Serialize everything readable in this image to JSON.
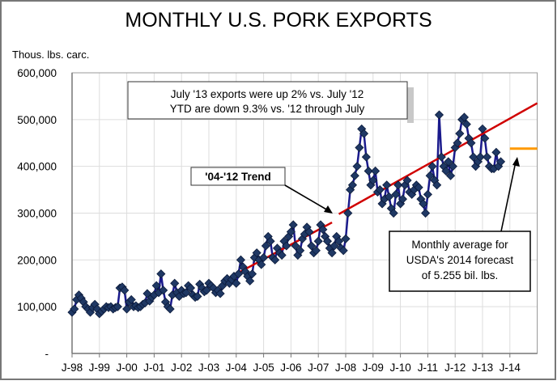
{
  "chart_data": {
    "type": "line",
    "title": "MONTHLY U.S. PORK EXPORTS",
    "ylabel": "Thous. lbs. carc.",
    "xlabel": "",
    "ylim": [
      0,
      600000
    ],
    "yticks": [
      "-",
      "100,000",
      "200,000",
      "300,000",
      "400,000",
      "500,000",
      "600,000"
    ],
    "xticks": [
      "J-98",
      "J-99",
      "J-00",
      "J-01",
      "J-02",
      "J-03",
      "J-04",
      "J-05",
      "J-06",
      "J-07",
      "J-08",
      "J-09",
      "J-10",
      "J-11",
      "J-12",
      "J-13",
      "J-14"
    ],
    "grid": true,
    "x_start": "Jan 1998",
    "series": [
      {
        "name": "Monthly exports",
        "color": "#1a1a8c",
        "marker_color": "#1f3864",
        "values": [
          88000,
          95000,
          115000,
          125000,
          118000,
          110000,
          100000,
          95000,
          88000,
          98000,
          105000,
          95000,
          85000,
          90000,
          95000,
          100000,
          98000,
          100000,
          95000,
          98000,
          100000,
          140000,
          142000,
          135000,
          95000,
          110000,
          115000,
          100000,
          102000,
          98000,
          100000,
          105000,
          108000,
          128000,
          112000,
          120000,
          125000,
          145000,
          130000,
          170000,
          135000,
          110000,
          100000,
          95000,
          125000,
          150000,
          130000,
          122000,
          135000,
          128000,
          130000,
          145000,
          140000,
          125000,
          120000,
          122000,
          148000,
          140000,
          132000,
          135000,
          150000,
          145000,
          140000,
          130000,
          135000,
          128000,
          145000,
          155000,
          160000,
          150000,
          158000,
          165000,
          150000,
          170000,
          200000,
          185000,
          175000,
          165000,
          155000,
          170000,
          205000,
          215000,
          200000,
          190000,
          205000,
          230000,
          250000,
          240000,
          205000,
          200000,
          225000,
          215000,
          210000,
          240000,
          230000,
          250000,
          260000,
          275000,
          230000,
          210000,
          220000,
          245000,
          255000,
          270000,
          260000,
          230000,
          215000,
          220000,
          240000,
          275000,
          265000,
          250000,
          240000,
          225000,
          215000,
          230000,
          250000,
          240000,
          225000,
          220000,
          245000,
          300000,
          350000,
          360000,
          380000,
          400000,
          440000,
          480000,
          470000,
          420000,
          390000,
          360000,
          370000,
          390000,
          345000,
          350000,
          320000,
          330000,
          360000,
          335000,
          310000,
          300000,
          340000,
          360000,
          320000,
          330000,
          360000,
          370000,
          345000,
          340000,
          350000,
          360000,
          355000,
          330000,
          320000,
          300000,
          340000,
          380000,
          400000,
          370000,
          360000,
          510000,
          420000,
          400000,
          390000,
          410000,
          380000,
          400000,
          440000,
          450000,
          470000,
          500000,
          505000,
          490000,
          460000,
          450000,
          420000,
          400000,
          410000,
          420000,
          480000,
          460000,
          420000,
          400000,
          395000,
          395000,
          430000,
          400000,
          410000
        ]
      },
      {
        "name": "'04-'12 Trend",
        "color": "#d00000",
        "segments": [
          [
            [
              2004.0,
              170000
            ],
            [
              2007.5,
              280000
            ]
          ],
          [
            [
              2007.75,
              298000
            ],
            [
              2015.0,
              535000
            ]
          ]
        ]
      },
      {
        "name": "USDA 2014 forecast monthly average",
        "color": "#ff9900",
        "range": [
          2014.0,
          2015.0
        ],
        "value": 437900
      }
    ],
    "annotations": {
      "note_line1": "July '13 exports were up 2% vs. July '12",
      "note_line2": "YTD are down 9.3% vs. '12 through July",
      "trend_label": "'04-'12 Trend",
      "forecast_line1": "Monthly average for",
      "forecast_line2": "USDA's 2014 forecast",
      "forecast_line3": "of 5.255 bil. lbs."
    }
  }
}
